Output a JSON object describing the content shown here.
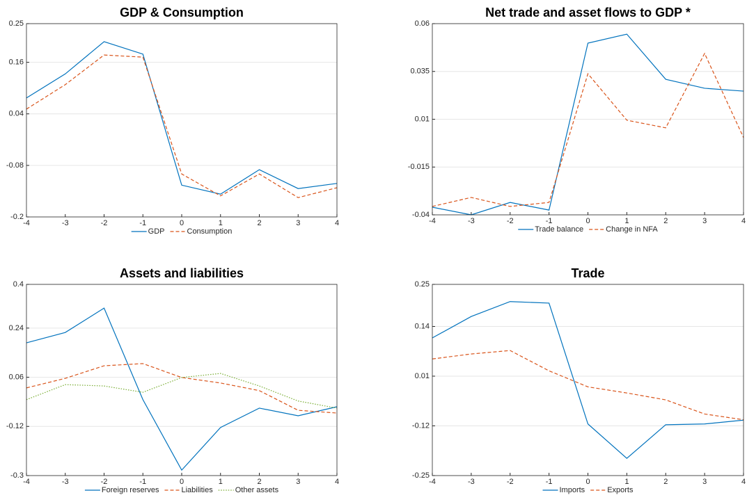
{
  "chart_data": [
    {
      "type": "line",
      "title": "GDP & Consumption",
      "x": [
        -4,
        -3,
        -2,
        -1,
        0,
        1,
        2,
        3,
        4
      ],
      "xlim": [
        -4,
        4
      ],
      "xticks": [
        -4,
        -3,
        -2,
        -1,
        0,
        1,
        2,
        3,
        4
      ],
      "ylim": [
        -0.2,
        0.25
      ],
      "yticks": [
        -0.2,
        -0.08,
        0.04,
        0.16,
        0.25
      ],
      "grid": true,
      "legend": "bottom",
      "series": [
        {
          "name": "GDP",
          "color": "#0072bd",
          "style": "solid",
          "values": [
            0.077,
            0.133,
            0.208,
            0.179,
            -0.126,
            -0.147,
            -0.09,
            -0.134,
            -0.122
          ]
        },
        {
          "name": "Consumption",
          "color": "#d95319",
          "style": "dashed",
          "values": [
            0.051,
            0.108,
            0.177,
            0.172,
            -0.1,
            -0.151,
            -0.1,
            -0.155,
            -0.132
          ]
        }
      ]
    },
    {
      "type": "line",
      "title": "Net trade and asset flows to GDP *",
      "x": [
        -4,
        -3,
        -2,
        -1,
        0,
        1,
        2,
        3,
        4
      ],
      "xlim": [
        -4,
        4
      ],
      "xticks": [
        -4,
        -3,
        -2,
        -1,
        0,
        1,
        2,
        3,
        4
      ],
      "ylim": [
        -0.04,
        0.06
      ],
      "yticks": [
        -0.04,
        -0.015,
        0.01,
        0.035,
        0.06
      ],
      "grid": true,
      "legend": "bottom",
      "series": [
        {
          "name": "Trade balance",
          "color": "#0072bd",
          "style": "solid",
          "values": [
            -0.036,
            -0.04,
            -0.0335,
            -0.0375,
            0.0498,
            0.0545,
            0.0309,
            0.0262,
            0.0247
          ]
        },
        {
          "name": "Change in NFA",
          "color": "#d95319",
          "style": "dashed",
          "values": [
            -0.0356,
            -0.0309,
            -0.0356,
            -0.0335,
            0.0338,
            0.0095,
            0.0055,
            0.0444,
            0.0004
          ]
        }
      ]
    },
    {
      "type": "line",
      "title": "Assets and liabilities",
      "x": [
        -4,
        -3,
        -2,
        -1,
        0,
        1,
        2,
        3,
        4
      ],
      "xlim": [
        -4,
        4
      ],
      "xticks": [
        -4,
        -3,
        -2,
        -1,
        0,
        1,
        2,
        3,
        4
      ],
      "ylim": [
        -0.3,
        0.4
      ],
      "yticks": [
        -0.3,
        -0.12,
        0.06,
        0.24,
        0.4
      ],
      "grid": true,
      "legend": "bottom",
      "series": [
        {
          "name": "Foreign reserves",
          "color": "#0072bd",
          "style": "solid",
          "values": [
            0.186,
            0.224,
            0.313,
            -0.022,
            -0.28,
            -0.124,
            -0.053,
            -0.081,
            -0.048
          ]
        },
        {
          "name": "Liabilities",
          "color": "#d95319",
          "style": "dashed",
          "values": [
            0.021,
            0.056,
            0.102,
            0.11,
            0.059,
            0.039,
            0.011,
            -0.061,
            -0.071
          ]
        },
        {
          "name": "Other assets",
          "color": "#77ac30",
          "style": "dotted",
          "values": [
            -0.022,
            0.033,
            0.028,
            0.005,
            0.059,
            0.074,
            0.028,
            -0.027,
            -0.053
          ]
        }
      ]
    },
    {
      "type": "line",
      "title": "Trade",
      "x": [
        -4,
        -3,
        -2,
        -1,
        0,
        1,
        2,
        3,
        4
      ],
      "xlim": [
        -4,
        4
      ],
      "xticks": [
        -4,
        -3,
        -2,
        -1,
        0,
        1,
        2,
        3,
        4
      ],
      "ylim": [
        -0.25,
        0.25
      ],
      "yticks": [
        -0.25,
        -0.12,
        0.01,
        0.14,
        0.25
      ],
      "grid": true,
      "legend": "bottom",
      "series": [
        {
          "name": "Imports",
          "color": "#0072bd",
          "style": "solid",
          "values": [
            0.11,
            0.166,
            0.205,
            0.201,
            -0.115,
            -0.205,
            -0.117,
            -0.115,
            -0.105
          ]
        },
        {
          "name": "Exports",
          "color": "#d95319",
          "style": "dashed",
          "values": [
            0.055,
            0.068,
            0.077,
            0.024,
            -0.018,
            -0.034,
            -0.052,
            -0.089,
            -0.104
          ]
        }
      ]
    }
  ]
}
